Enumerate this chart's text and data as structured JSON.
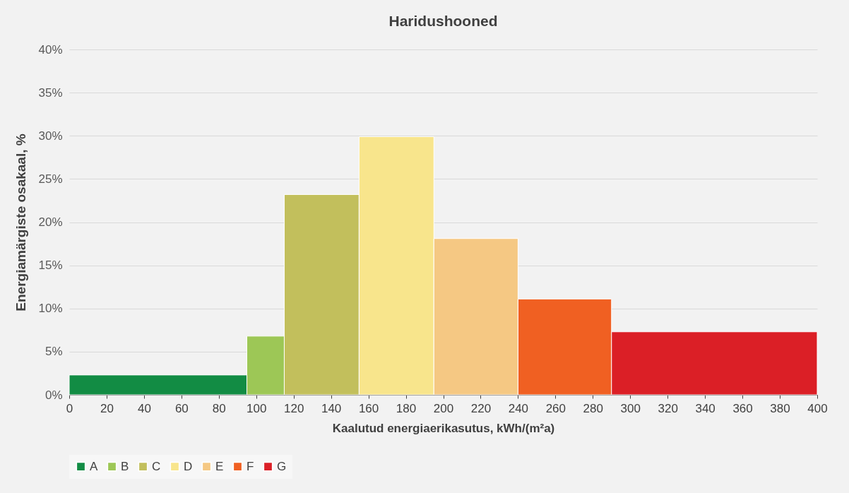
{
  "chart_data": {
    "type": "histogram",
    "title": "Haridushooned",
    "xlabel": "Kaalutud energiaerikasutus, kWh/(m²a)",
    "ylabel": "Energiamärgiste osakaal, %",
    "bins": [
      0,
      95,
      115,
      155,
      195,
      240,
      290,
      400
    ],
    "series": [
      {
        "name": "A",
        "color": "#128c44",
        "values": [
          2.3,
          null,
          null,
          null,
          null,
          null,
          null
        ]
      },
      {
        "name": "B",
        "color": "#9dc756",
        "values": [
          null,
          6.8,
          null,
          null,
          null,
          null,
          null
        ]
      },
      {
        "name": "C",
        "color": "#c2bf5c",
        "values": [
          null,
          null,
          23.2,
          null,
          null,
          null,
          null
        ]
      },
      {
        "name": "D",
        "color": "#f8e58c",
        "values": [
          null,
          null,
          null,
          29.9,
          null,
          null,
          null
        ]
      },
      {
        "name": "E",
        "color": "#f5c883",
        "values": [
          null,
          null,
          null,
          null,
          18.1,
          null,
          null
        ]
      },
      {
        "name": "F",
        "color": "#f06022",
        "values": [
          null,
          null,
          null,
          null,
          null,
          11.1,
          null
        ]
      },
      {
        "name": "G",
        "color": "#db1f26",
        "values": [
          null,
          null,
          null,
          null,
          null,
          null,
          7.3
        ]
      }
    ],
    "xlim": [
      0,
      400
    ],
    "xticks": [
      0,
      20,
      40,
      60,
      80,
      100,
      120,
      140,
      160,
      180,
      200,
      220,
      240,
      260,
      280,
      300,
      320,
      340,
      360,
      380,
      400
    ],
    "ylim": [
      0,
      40
    ],
    "yticks": [
      {
        "value": 0,
        "label": "0%"
      },
      {
        "value": 5,
        "label": "5%"
      },
      {
        "value": 10,
        "label": "10%"
      },
      {
        "value": 15,
        "label": "15%"
      },
      {
        "value": 20,
        "label": "20%"
      },
      {
        "value": 25,
        "label": "25%"
      },
      {
        "value": 30,
        "label": "30%"
      },
      {
        "value": 35,
        "label": "35%"
      },
      {
        "value": 40,
        "label": "40%"
      }
    ],
    "grid": "y",
    "legend": "bottom"
  }
}
